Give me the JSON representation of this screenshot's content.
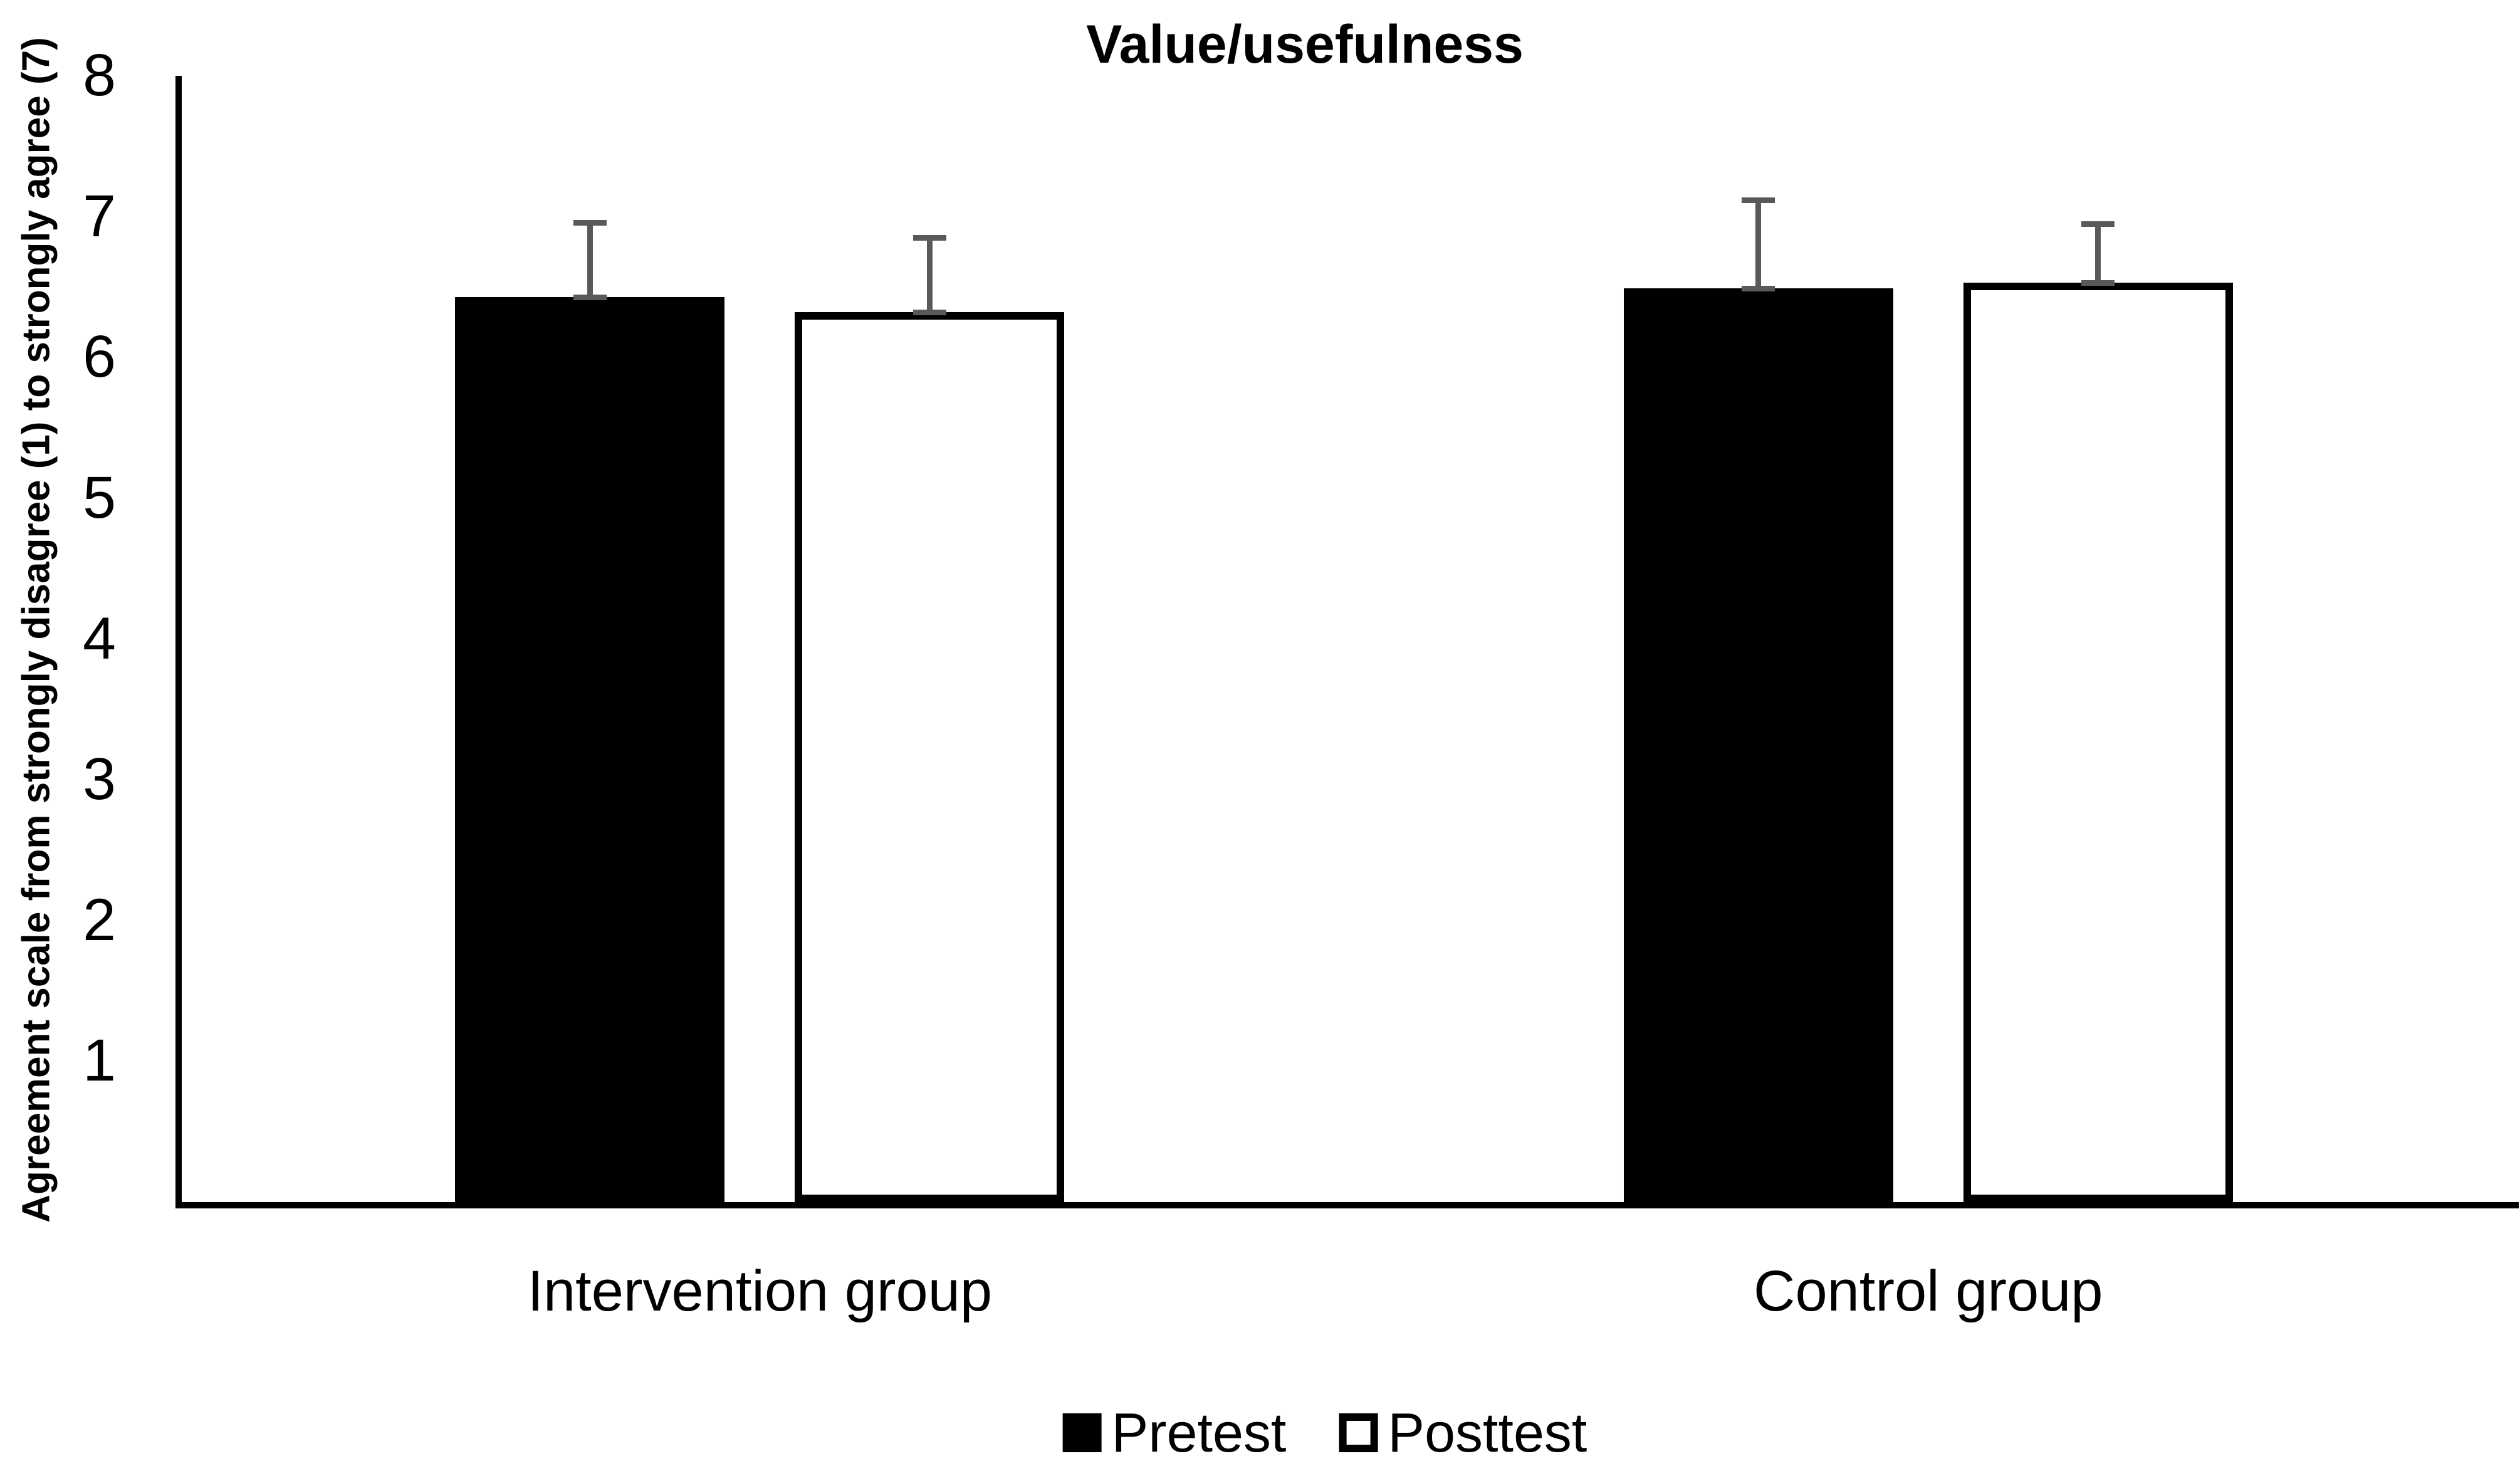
{
  "chart_data": {
    "type": "bar",
    "title": "Value/usefulness",
    "ylabel": "Agreement scale from strongly disagree (1) to strongly agree (7)",
    "xlabel": "",
    "categories": [
      "Intervention group",
      "Control group"
    ],
    "series": [
      {
        "name": "Pretest",
        "fill": "#000000",
        "style": "filled",
        "values": [
          6.43,
          6.49
        ],
        "errors_plus": [
          0.53,
          0.63
        ]
      },
      {
        "name": "Posttest",
        "fill": "#ffffff",
        "style": "hollow",
        "values": [
          6.32,
          6.53
        ],
        "errors_plus": [
          0.53,
          0.42
        ]
      }
    ],
    "ylim": [
      0,
      8
    ],
    "yticks": [
      1,
      2,
      3,
      4,
      5,
      6,
      7,
      8
    ],
    "grid": false,
    "legend_position": "bottom",
    "error_bar_color": "#595959",
    "bar_color_pretest": "#000000",
    "bar_color_posttest": "#ffffff",
    "axis_color": "#000000"
  }
}
